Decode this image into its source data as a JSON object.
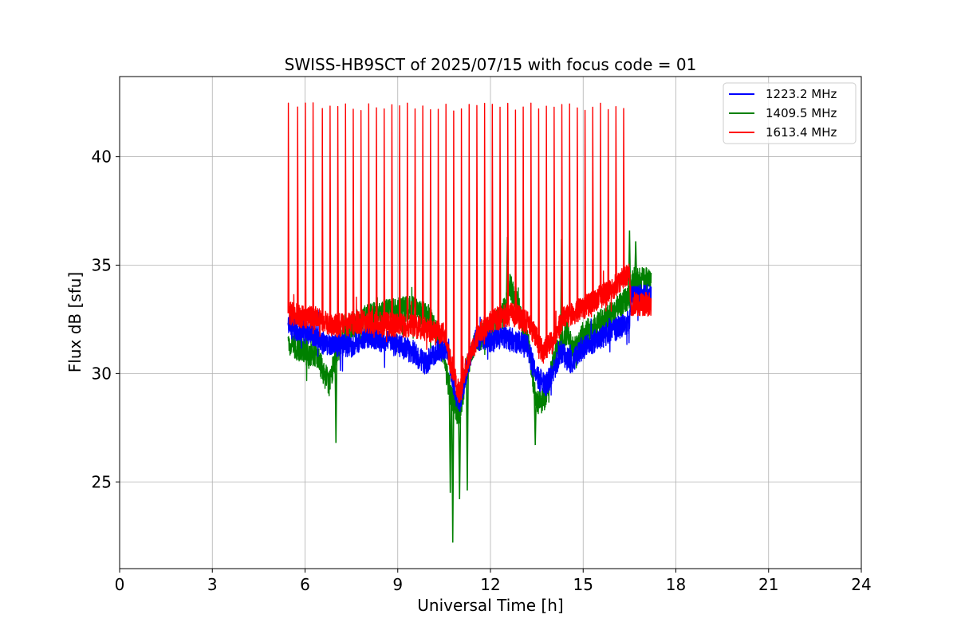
{
  "chart_data": {
    "type": "line",
    "title": "SWISS-HB9SCT of 2025/07/15 with focus code = 01",
    "xlabel": "Universal Time [h]",
    "ylabel": "Flux dB [sfu]",
    "xlim": [
      0,
      24
    ],
    "ylim": [
      21,
      43.7
    ],
    "xticks": [
      0,
      3,
      6,
      9,
      12,
      15,
      18,
      21,
      24
    ],
    "yticks": [
      25,
      30,
      35,
      40
    ],
    "grid": true,
    "legend_position": "top-right",
    "series": [
      {
        "name": "1223.2 MHz",
        "color": "#0000ff",
        "base_points": [
          [
            5.45,
            32.2
          ],
          [
            5.8,
            32.0
          ],
          [
            6.3,
            31.8
          ],
          [
            6.6,
            31.4
          ],
          [
            7.0,
            31.3
          ],
          [
            7.5,
            31.3
          ],
          [
            8.0,
            31.7
          ],
          [
            8.5,
            31.5
          ],
          [
            9.0,
            31.3
          ],
          [
            9.5,
            31.0
          ],
          [
            9.9,
            30.4
          ],
          [
            10.2,
            31.0
          ],
          [
            10.6,
            31.2
          ],
          [
            10.8,
            29.5
          ],
          [
            11.0,
            28.5
          ],
          [
            11.2,
            30.0
          ],
          [
            11.5,
            31.6
          ],
          [
            12.0,
            31.5
          ],
          [
            12.5,
            31.7
          ],
          [
            12.8,
            31.5
          ],
          [
            13.2,
            31.2
          ],
          [
            13.5,
            29.8
          ],
          [
            13.8,
            29.5
          ],
          [
            14.0,
            30.0
          ],
          [
            14.3,
            31.0
          ],
          [
            14.6,
            30.5
          ],
          [
            15.0,
            31.2
          ],
          [
            15.5,
            31.6
          ],
          [
            16.0,
            32.0
          ],
          [
            16.5,
            32.4
          ],
          [
            16.55,
            33.5
          ],
          [
            17.2,
            33.6
          ]
        ],
        "noise": 0.55
      },
      {
        "name": "1409.5 MHz",
        "color": "#008000",
        "base_points": [
          [
            5.45,
            31.4
          ],
          [
            6.0,
            31.0
          ],
          [
            6.4,
            30.8
          ],
          [
            6.6,
            30.0
          ],
          [
            6.8,
            29.5
          ],
          [
            7.0,
            31.0
          ],
          [
            7.5,
            32.2
          ],
          [
            8.0,
            32.6
          ],
          [
            8.5,
            32.8
          ],
          [
            9.0,
            32.9
          ],
          [
            9.5,
            33.0
          ],
          [
            10.0,
            32.6
          ],
          [
            10.4,
            31.5
          ],
          [
            10.7,
            29.0
          ],
          [
            11.0,
            28.0
          ],
          [
            11.2,
            30.0
          ],
          [
            11.5,
            31.5
          ],
          [
            12.0,
            32.0
          ],
          [
            12.5,
            33.0
          ],
          [
            12.6,
            34.2
          ],
          [
            12.8,
            33.5
          ],
          [
            13.2,
            31.6
          ],
          [
            13.5,
            28.5
          ],
          [
            13.8,
            29.0
          ],
          [
            14.0,
            30.5
          ],
          [
            14.5,
            32.0
          ],
          [
            14.7,
            31.0
          ],
          [
            15.0,
            31.8
          ],
          [
            15.5,
            32.3
          ],
          [
            16.0,
            32.8
          ],
          [
            16.5,
            33.6
          ],
          [
            16.6,
            34.3
          ],
          [
            17.2,
            34.3
          ]
        ],
        "noise": 0.6
      },
      {
        "name": "1613.4 MHz",
        "color": "#ff0000",
        "base_points": [
          [
            5.45,
            32.8
          ],
          [
            6.0,
            32.6
          ],
          [
            6.5,
            32.5
          ],
          [
            7.0,
            32.2
          ],
          [
            7.5,
            32.3
          ],
          [
            8.0,
            32.4
          ],
          [
            8.5,
            32.3
          ],
          [
            9.0,
            32.2
          ],
          [
            9.5,
            32.2
          ],
          [
            10.0,
            32.0
          ],
          [
            10.5,
            31.8
          ],
          [
            10.8,
            30.0
          ],
          [
            11.0,
            29.0
          ],
          [
            11.2,
            30.2
          ],
          [
            11.6,
            31.8
          ],
          [
            12.0,
            32.4
          ],
          [
            12.5,
            32.7
          ],
          [
            12.8,
            32.7
          ],
          [
            13.3,
            32.2
          ],
          [
            13.7,
            31.0
          ],
          [
            14.0,
            31.5
          ],
          [
            14.4,
            32.6
          ],
          [
            15.0,
            33.0
          ],
          [
            15.5,
            33.5
          ],
          [
            16.0,
            34.0
          ],
          [
            16.5,
            34.6
          ],
          [
            16.55,
            33.2
          ],
          [
            17.2,
            33.2
          ]
        ],
        "noise": 0.55,
        "spike_peak": 42.3,
        "spike_times": [
          5.45,
          5.75,
          6.0,
          6.25,
          6.55,
          6.8,
          7.05,
          7.3,
          7.55,
          7.8,
          8.05,
          8.3,
          8.55,
          8.8,
          9.05,
          9.3,
          9.55,
          9.8,
          10.05,
          10.3,
          10.55,
          10.8,
          11.05,
          11.3,
          11.55,
          11.8,
          12.05,
          12.3,
          12.55,
          12.8,
          13.05,
          13.3,
          13.55,
          13.8,
          14.05,
          14.3,
          14.55,
          14.8,
          15.05,
          15.3,
          15.55,
          15.8,
          16.05,
          16.3
        ]
      }
    ],
    "annotations": [
      {
        "series": "1409.5 MHz",
        "x": 10.78,
        "y": 22.2
      },
      {
        "series": "1409.5 MHz",
        "x": 10.7,
        "y": 24.5
      },
      {
        "series": "1409.5 MHz",
        "x": 11.0,
        "y": 24.2
      },
      {
        "series": "1409.5 MHz",
        "x": 11.25,
        "y": 24.6
      },
      {
        "series": "1409.5 MHz",
        "x": 7.0,
        "y": 26.8
      },
      {
        "series": "1409.5 MHz",
        "x": 13.45,
        "y": 26.7
      },
      {
        "series": "1409.5 MHz",
        "x": 12.55,
        "y": 36.3
      },
      {
        "series": "1409.5 MHz",
        "x": 16.5,
        "y": 36.6
      },
      {
        "series": "1409.5 MHz",
        "x": 14.3,
        "y": 36.2
      },
      {
        "series": "1409.5 MHz",
        "x": 16.7,
        "y": 36.1
      }
    ]
  }
}
